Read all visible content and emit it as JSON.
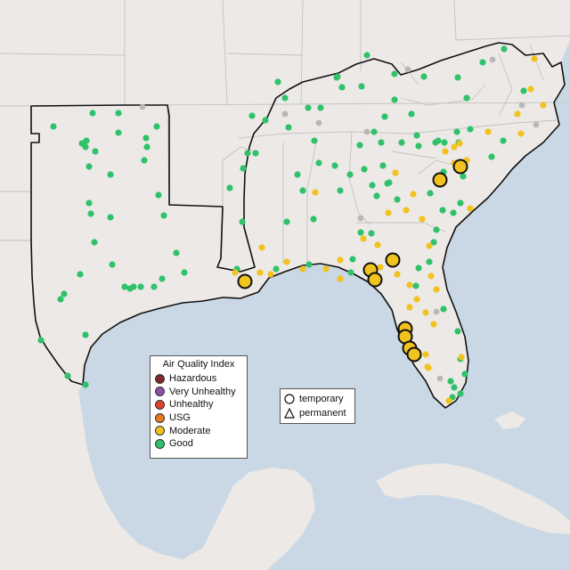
{
  "legend": {
    "title": "Air Quality Index",
    "categories": [
      {
        "label": "Hazardous",
        "color": "#7e2a26"
      },
      {
        "label": "Very Unhealthy",
        "color": "#8e4fa8"
      },
      {
        "label": "Unhealthy",
        "color": "#e0412a"
      },
      {
        "label": "USG",
        "color": "#e57b1c"
      },
      {
        "label": "Moderate",
        "color": "#f2c21d"
      },
      {
        "label": "Good",
        "color": "#2fc26b"
      }
    ]
  },
  "monitor_types": {
    "items": [
      {
        "label": "temporary",
        "icon": "circle-outline-icon"
      },
      {
        "label": "permanent",
        "icon": "triangle-outline-icon"
      }
    ]
  },
  "colors": {
    "ocean": "#c9d8e4",
    "land": "#ece9e6",
    "region_border": "#111111",
    "state_border": "#c4c4c4",
    "no_data": "#b8b8b8"
  }
}
